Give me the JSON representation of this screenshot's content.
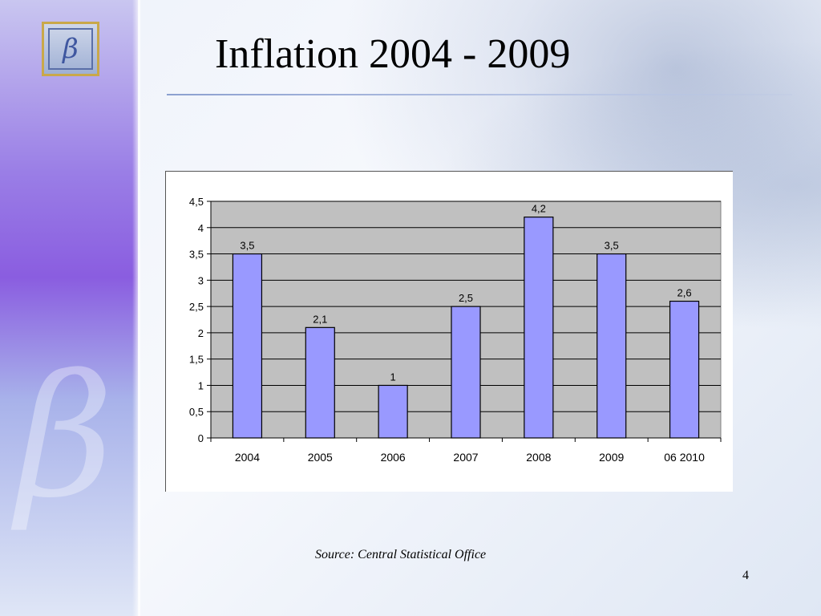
{
  "slide": {
    "title": "Inflation 2004 - 2009",
    "source": "Source: Central Statistical Office",
    "page_number": "4"
  },
  "chart_data": {
    "type": "bar",
    "categories": [
      "2004",
      "2005",
      "2006",
      "2007",
      "2008",
      "2009",
      "06 2010"
    ],
    "values": [
      3.5,
      2.1,
      1,
      2.5,
      4.2,
      3.5,
      2.6
    ],
    "value_labels": [
      "3,5",
      "2,1",
      "1",
      "2,5",
      "4,2",
      "3,5",
      "2,6"
    ],
    "yticks": [
      "0",
      "0,5",
      "1",
      "1,5",
      "2",
      "2,5",
      "3",
      "3,5",
      "4",
      "4,5"
    ],
    "ylim": [
      0,
      4.5
    ],
    "grid": true,
    "legend": false,
    "colors": {
      "bar_fill": "#9999ff",
      "bar_stroke": "#000000",
      "plot_background": "#c0c0c0",
      "gridline": "#000000"
    }
  }
}
